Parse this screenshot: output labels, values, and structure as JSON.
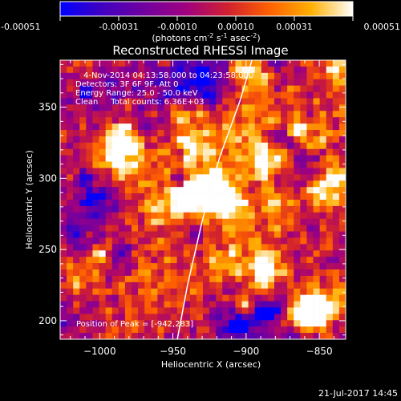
{
  "chart_data": {
    "type": "heatmap",
    "title": "Reconstructed RHESSI Image",
    "xlabel": "Heliocentric X (arcsec)",
    "ylabel": "Heliocentric Y (arcsec)",
    "xlim": [
      -1027,
      -832
    ],
    "ylim": [
      187,
      383
    ],
    "xticks": [
      -1000,
      -950,
      -900,
      -850
    ],
    "xtick_labels": [
      "−1000",
      "−950",
      "−900",
      "−850"
    ],
    "yticks": [
      200,
      250,
      300,
      350
    ],
    "ytick_labels": [
      "200",
      "250",
      "300",
      "350"
    ],
    "colorbar": {
      "min": -0.00051,
      "max": 0.00051,
      "tick_labels": [
        "-0.00051",
        "-0.00031",
        "-0.00010",
        "0.00010",
        "0.00031",
        "0.00051"
      ],
      "unit_label": [
        "(photons cm",
        "-2",
        " s",
        "-1",
        " asec",
        "-2",
        ")"
      ],
      "colors": [
        "#0000ff",
        "#4000c0",
        "#7000a0",
        "#a00080",
        "#d02030",
        "#ff6000",
        "#ffb000",
        "#ffffff"
      ]
    },
    "annotations": [
      "4-Nov-2014 04:13:58.000 to 04:23:58.000",
      "Detectors: 3F 6F 9F, Att 0",
      "Energy Range: 25.0 - 50.0 keV",
      "Clean     Total counts: 6.36E+03",
      "Position of Peak = [-942,283]"
    ],
    "limb_curve": [
      [
        -947,
        187
      ],
      [
        -940,
        225
      ],
      [
        -930,
        270
      ],
      [
        -918,
        315
      ],
      [
        -904,
        355
      ],
      [
        -896,
        383
      ]
    ],
    "grid": false
  },
  "footer": {
    "timestamp": "21-Jul-2017 14:45"
  }
}
